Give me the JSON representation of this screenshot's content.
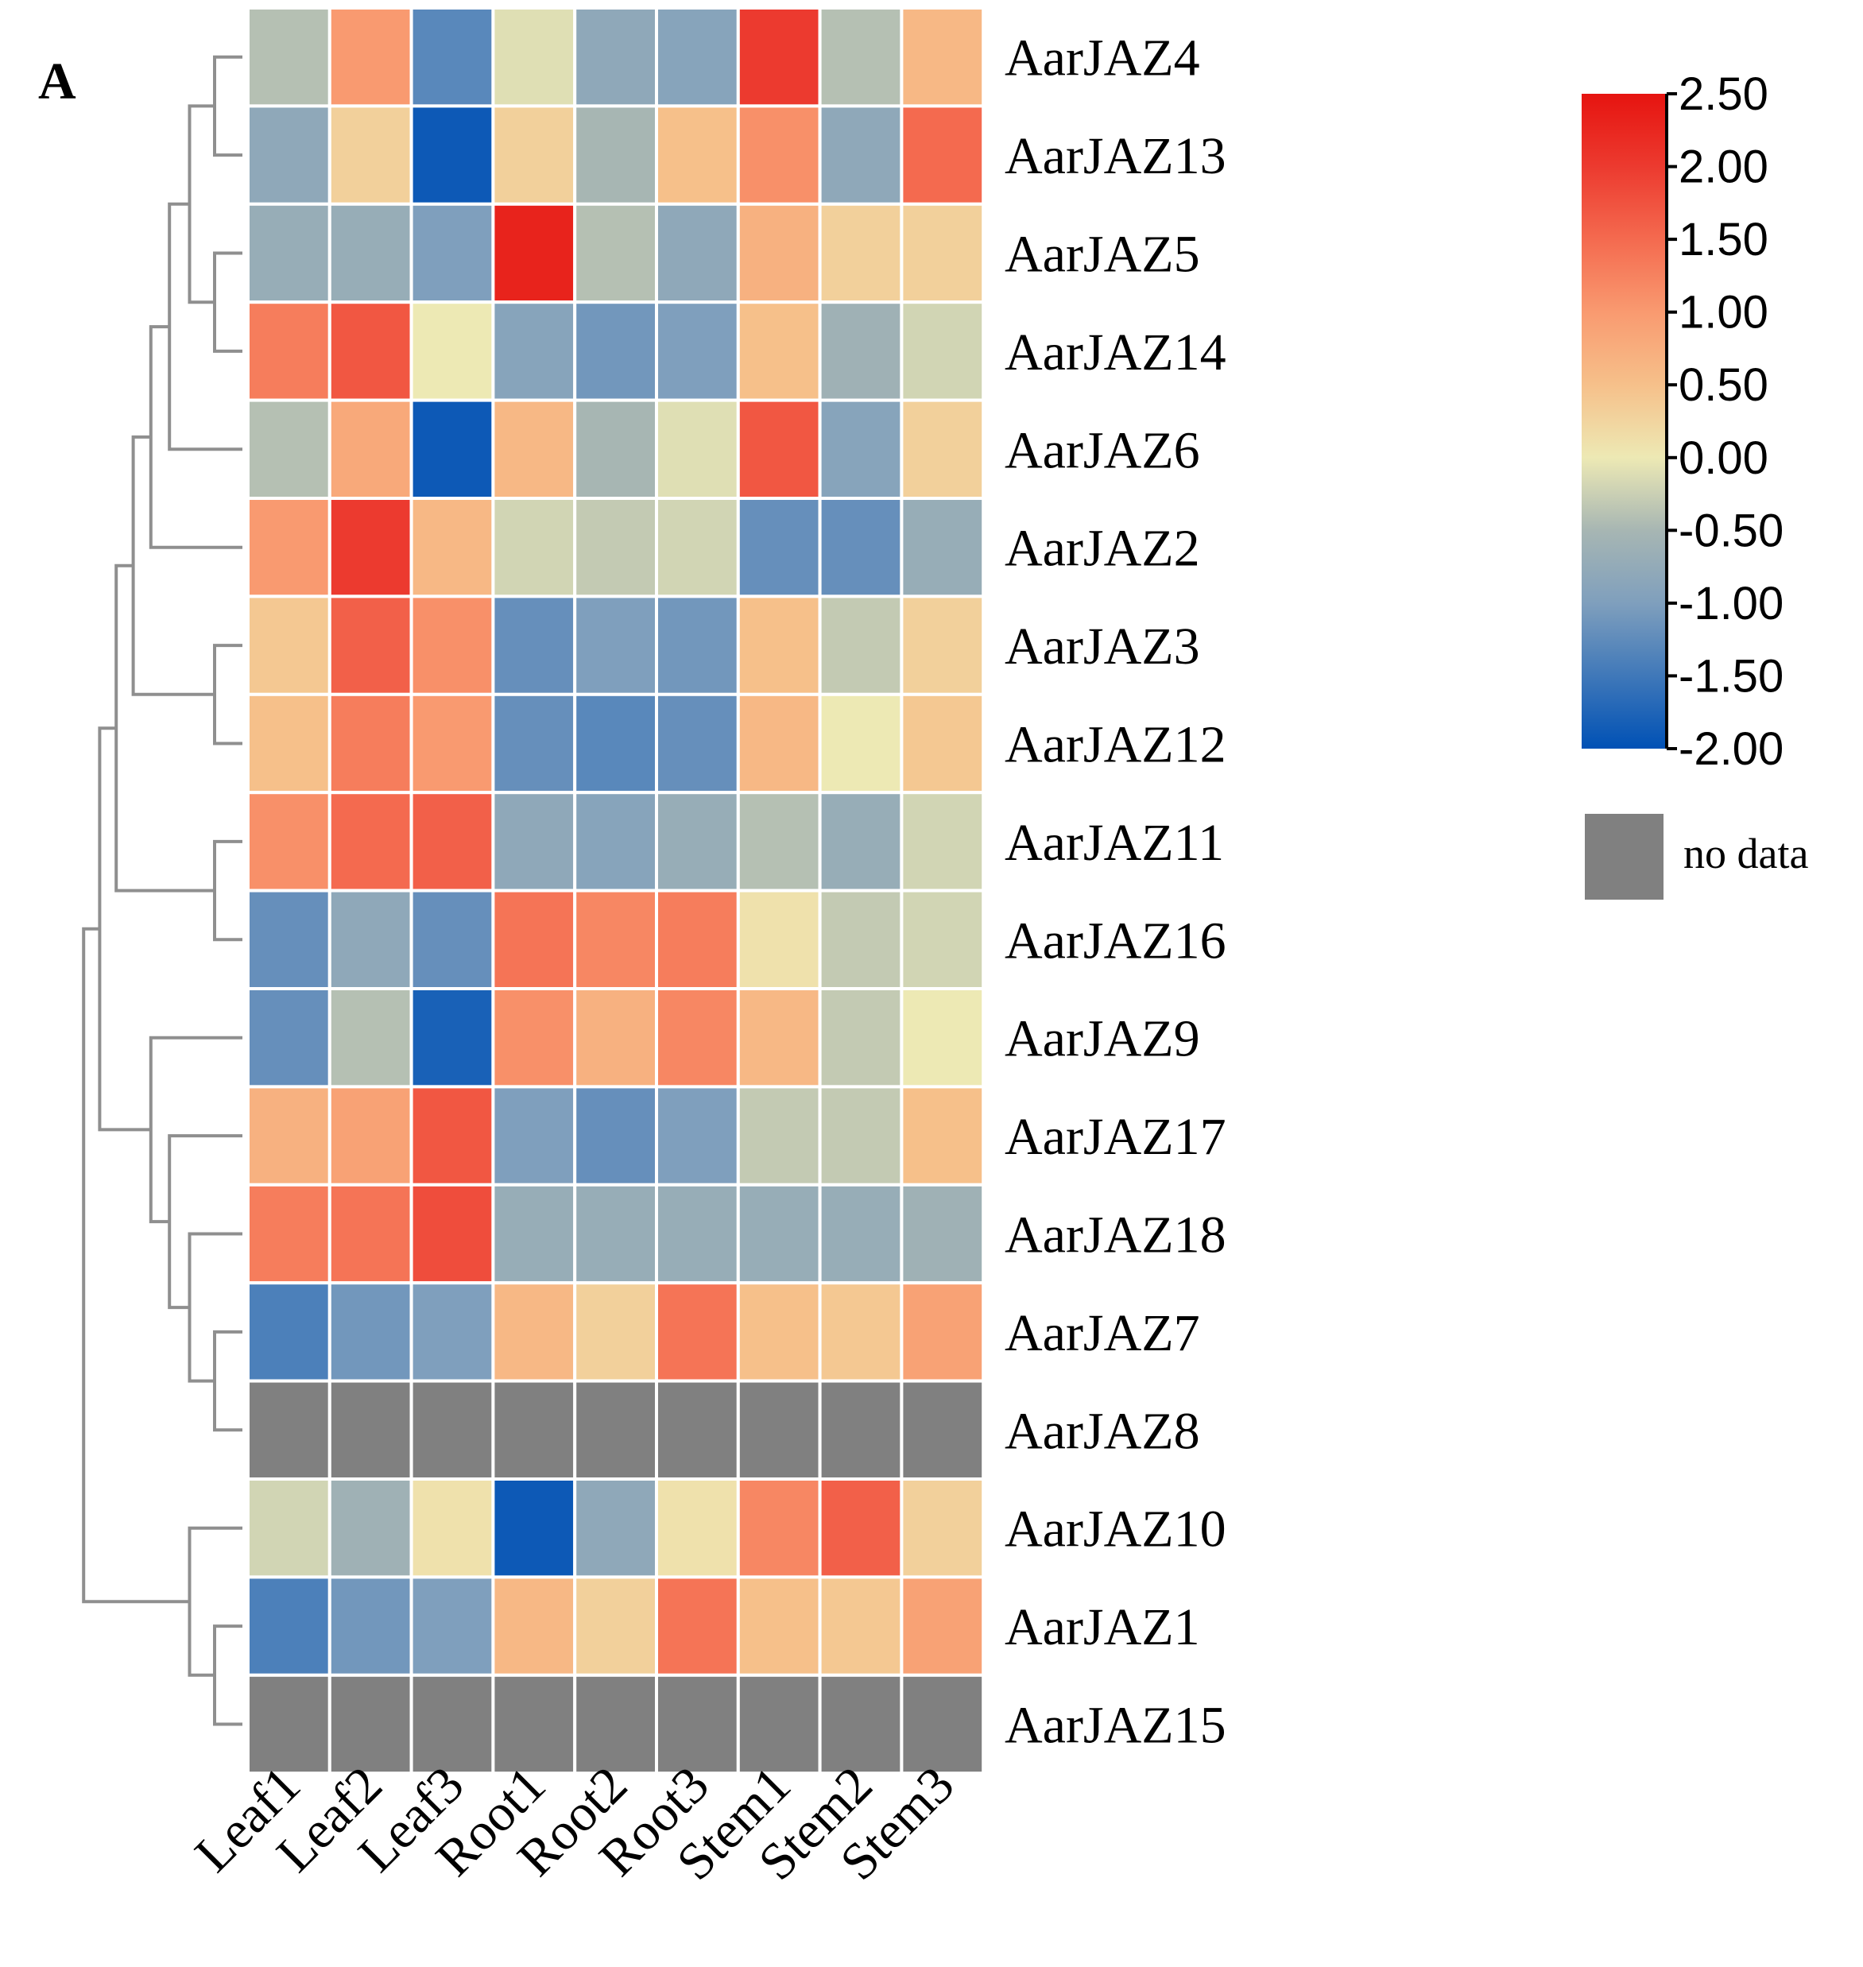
{
  "panel_label": "A",
  "chart_data": {
    "type": "heatmap",
    "columns": [
      "Leaf1",
      "Leaf2",
      "Leaf3",
      "Root1",
      "Root2",
      "Root3",
      "Stem1",
      "Stem2",
      "Stem3"
    ],
    "rows": [
      "AarJAZ4",
      "AarJAZ13",
      "AarJAZ5",
      "AarJAZ14",
      "AarJAZ6",
      "AarJAZ2",
      "AarJAZ3",
      "AarJAZ12",
      "AarJAZ11",
      "AarJAZ16",
      "AarJAZ9",
      "AarJAZ17",
      "AarJAZ18",
      "AarJAZ7",
      "AarJAZ8",
      "AarJAZ10",
      "AarJAZ1",
      "AarJAZ15"
    ],
    "values": [
      [
        -0.4,
        1.0,
        -1.3,
        -0.1,
        -0.8,
        -0.9,
        2.0,
        -0.4,
        0.6
      ],
      [
        -0.8,
        0.3,
        -1.9,
        0.3,
        -0.5,
        0.5,
        1.1,
        -0.8,
        1.5
      ],
      [
        -0.7,
        -0.7,
        -1.0,
        2.3,
        -0.4,
        -0.8,
        0.7,
        0.3,
        0.3
      ],
      [
        1.3,
        1.7,
        0.0,
        -0.9,
        -1.1,
        -1.0,
        0.5,
        -0.6,
        -0.2
      ],
      [
        -0.4,
        0.8,
        -1.9,
        0.6,
        -0.5,
        -0.1,
        1.7,
        -0.9,
        0.3
      ],
      [
        1.0,
        2.0,
        0.6,
        -0.2,
        -0.3,
        -0.2,
        -1.2,
        -1.2,
        -0.7
      ],
      [
        0.4,
        1.6,
        1.1,
        -1.2,
        -1.0,
        -1.1,
        0.5,
        -0.3,
        0.3
      ],
      [
        0.5,
        1.3,
        1.0,
        -1.2,
        -1.3,
        -1.2,
        0.6,
        0.0,
        0.4
      ],
      [
        1.1,
        1.5,
        1.6,
        -0.8,
        -0.9,
        -0.7,
        -0.4,
        -0.7,
        -0.2
      ],
      [
        -1.2,
        -0.8,
        -1.2,
        1.4,
        1.2,
        1.3,
        0.1,
        -0.3,
        -0.2
      ],
      [
        -1.2,
        -0.4,
        -1.8,
        1.1,
        0.7,
        1.2,
        0.6,
        -0.3,
        0.0
      ],
      [
        0.7,
        0.9,
        1.7,
        -1.0,
        -1.2,
        -1.0,
        -0.3,
        -0.3,
        0.5
      ],
      [
        1.3,
        1.4,
        1.8,
        -0.7,
        -0.7,
        -0.7,
        -0.7,
        -0.7,
        -0.6
      ],
      [
        -1.4,
        -1.1,
        -1.0,
        0.6,
        0.3,
        1.4,
        0.5,
        0.4,
        0.9
      ],
      [
        null,
        null,
        null,
        null,
        null,
        null,
        null,
        null,
        null
      ],
      [
        -0.2,
        -0.6,
        0.1,
        -1.9,
        -0.8,
        0.1,
        1.2,
        1.6,
        0.3
      ],
      [
        -1.4,
        -1.1,
        -1.0,
        0.6,
        0.3,
        1.4,
        0.5,
        0.4,
        0.9
      ],
      [
        null,
        null,
        null,
        null,
        null,
        null,
        null,
        null,
        null
      ]
    ],
    "color_scale": {
      "min": -2.0,
      "max": 2.5,
      "stops": [
        {
          "value": -2.0,
          "color": "#0051b5"
        },
        {
          "value": -1.0,
          "color": "#7f9fbd"
        },
        {
          "value": -0.5,
          "color": "#a7b6b3"
        },
        {
          "value": 0.0,
          "color": "#ede9b4"
        },
        {
          "value": 0.5,
          "color": "#f6c08a"
        },
        {
          "value": 1.0,
          "color": "#f99a70"
        },
        {
          "value": 1.5,
          "color": "#f46a4f"
        },
        {
          "value": 2.0,
          "color": "#ec3a2f"
        },
        {
          "value": 2.5,
          "color": "#e61410"
        }
      ],
      "tick_labels": [
        "2.50",
        "2.00",
        "1.50",
        "1.00",
        "0.50",
        "0.00",
        "-0.50",
        "-1.00",
        "-1.50",
        "-2.00"
      ]
    },
    "no_data_color": "#808080",
    "no_data_label": "no data",
    "dendrogram_nodes": [
      {
        "a": 0,
        "b": 1
      },
      {
        "a": 2,
        "b": 3
      },
      {
        "a": "n0",
        "b": "n1"
      },
      {
        "a": "n2",
        "b": 4
      },
      {
        "a": "n3",
        "b": 5
      },
      {
        "a": 6,
        "b": 7
      },
      {
        "a": "n4",
        "b": "n5"
      },
      {
        "a": 8,
        "b": 9
      },
      {
        "a": "n6",
        "b": "n7"
      },
      {
        "a": 13,
        "b": 14
      },
      {
        "a": 12,
        "b": "n9"
      },
      {
        "a": 11,
        "b": "n10"
      },
      {
        "a": 10,
        "b": "n11"
      },
      {
        "a": "n8",
        "b": "n12"
      },
      {
        "a": 16,
        "b": 17
      },
      {
        "a": 15,
        "b": "n14"
      },
      {
        "a": "n13",
        "b": "n15"
      }
    ]
  }
}
